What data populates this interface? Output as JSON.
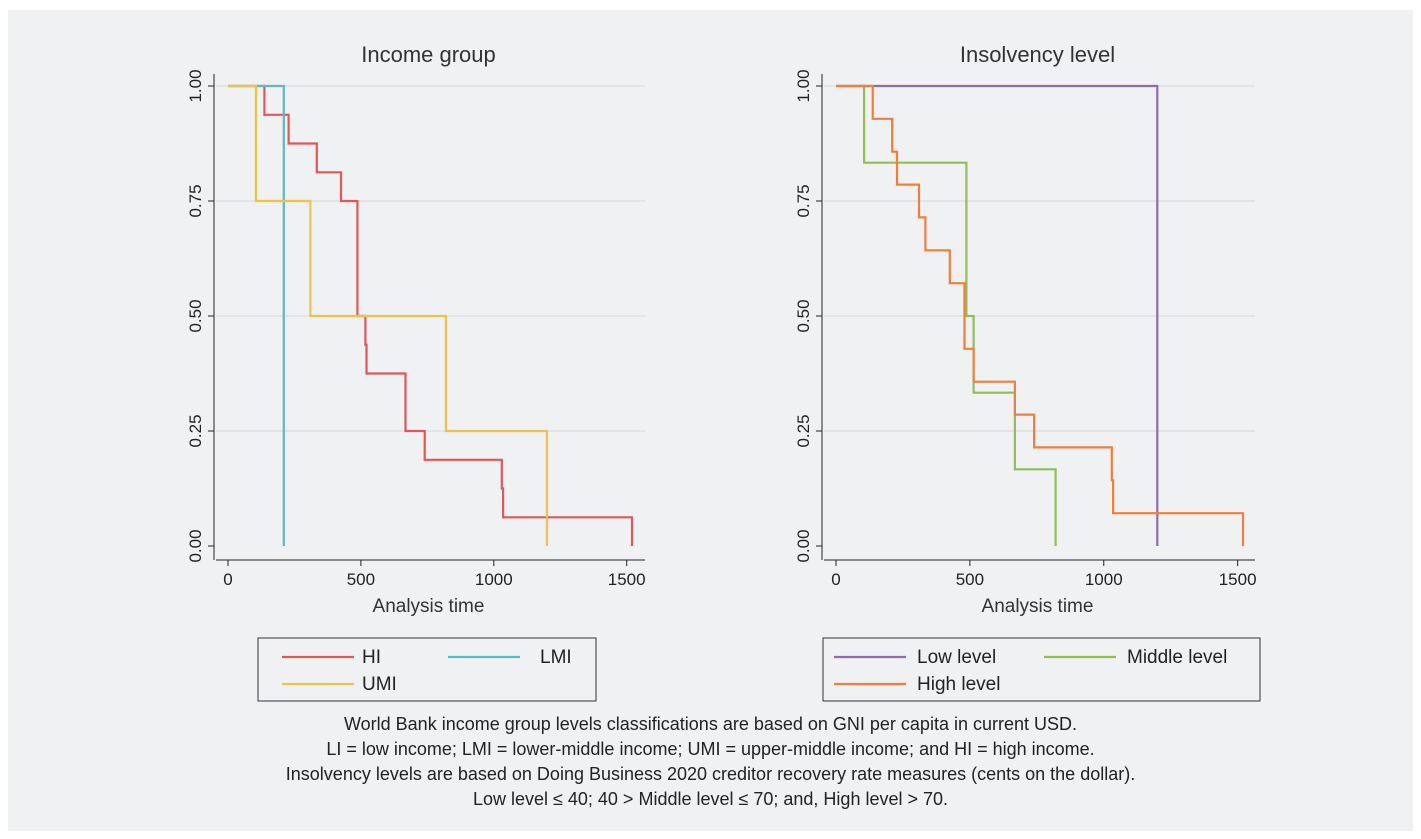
{
  "chart_data": [
    {
      "type": "line",
      "step": true,
      "title": "Income group",
      "xlabel": "Analysis time",
      "ylabel": "",
      "xlim": [
        0,
        1520
      ],
      "ylim": [
        0,
        1
      ],
      "xticks": [
        "0",
        "500",
        "1000",
        "1500"
      ],
      "xtick_values": [
        0,
        500,
        1000,
        1500
      ],
      "yticks": [
        "0.00",
        "0.25",
        "0.50",
        "0.75",
        "1.00"
      ],
      "ytick_values": [
        0,
        0.25,
        0.5,
        0.75,
        1
      ],
      "grid": true,
      "legend_position": "bottom",
      "legend_rows": [
        [
          "HI",
          "LMI"
        ],
        [
          "UMI"
        ]
      ],
      "series": [
        {
          "name": "HI",
          "color": "#e15759",
          "points": [
            [
              0,
              1
            ],
            [
              137,
              1
            ],
            [
              137,
              0.9375
            ],
            [
              228,
              0.9375
            ],
            [
              228,
              0.875
            ],
            [
              334,
              0.875
            ],
            [
              334,
              0.8125
            ],
            [
              425,
              0.8125
            ],
            [
              425,
              0.75
            ],
            [
              487,
              0.75
            ],
            [
              487,
              0.5
            ],
            [
              517,
              0.5
            ],
            [
              517,
              0.4375
            ],
            [
              521,
              0.4375
            ],
            [
              521,
              0.375
            ],
            [
              668,
              0.375
            ],
            [
              668,
              0.25
            ],
            [
              740,
              0.25
            ],
            [
              740,
              0.1875
            ],
            [
              1030,
              0.1875
            ],
            [
              1030,
              0.125
            ],
            [
              1035,
              0.125
            ],
            [
              1035,
              0.0625
            ],
            [
              1520,
              0.0625
            ],
            [
              1520,
              0
            ]
          ]
        },
        {
          "name": "LMI",
          "color": "#59b9c5",
          "points": [
            [
              0,
              1
            ],
            [
              210,
              1
            ],
            [
              210,
              0
            ]
          ]
        },
        {
          "name": "UMI",
          "color": "#f0c24b",
          "points": [
            [
              0,
              1
            ],
            [
              105,
              1
            ],
            [
              105,
              0.75
            ],
            [
              310,
              0.75
            ],
            [
              310,
              0.5
            ],
            [
              820,
              0.5
            ],
            [
              820,
              0.25
            ],
            [
              1200,
              0.25
            ],
            [
              1200,
              0
            ]
          ]
        }
      ]
    },
    {
      "type": "line",
      "step": true,
      "title": "Insolvency level",
      "xlabel": "Analysis time",
      "ylabel": "",
      "xlim": [
        0,
        1520
      ],
      "ylim": [
        0,
        1
      ],
      "xticks": [
        "0",
        "500",
        "1000",
        "1500"
      ],
      "xtick_values": [
        0,
        500,
        1000,
        1500
      ],
      "yticks": [
        "0.00",
        "0.25",
        "0.50",
        "0.75",
        "1.00"
      ],
      "ytick_values": [
        0,
        0.25,
        0.5,
        0.75,
        1
      ],
      "grid": true,
      "legend_position": "bottom",
      "legend_rows": [
        [
          "Low level",
          "Middle level"
        ],
        [
          "High level"
        ]
      ],
      "series": [
        {
          "name": "Low level",
          "color": "#8c6bb1",
          "points": [
            [
              0,
              1
            ],
            [
              1200,
              1
            ],
            [
              1200,
              0
            ]
          ]
        },
        {
          "name": "Middle level",
          "color": "#8fbf55",
          "points": [
            [
              0,
              1
            ],
            [
              105,
              1
            ],
            [
              105,
              0.8333
            ],
            [
              487,
              0.8333
            ],
            [
              487,
              0.5
            ],
            [
              514,
              0.5
            ],
            [
              514,
              0.3333
            ],
            [
              668,
              0.3333
            ],
            [
              668,
              0.1667
            ],
            [
              820,
              0.1667
            ],
            [
              820,
              0
            ]
          ]
        },
        {
          "name": "High level",
          "color": "#ef7f3a",
          "points": [
            [
              0,
              1
            ],
            [
              137,
              1
            ],
            [
              137,
              0.9286
            ],
            [
              210,
              0.9286
            ],
            [
              210,
              0.8571
            ],
            [
              228,
              0.8571
            ],
            [
              228,
              0.7857
            ],
            [
              310,
              0.7857
            ],
            [
              310,
              0.7143
            ],
            [
              334,
              0.7143
            ],
            [
              334,
              0.6429
            ],
            [
              425,
              0.6429
            ],
            [
              425,
              0.5714
            ],
            [
              480,
              0.5714
            ],
            [
              480,
              0.4286
            ],
            [
              514,
              0.4286
            ],
            [
              514,
              0.3571
            ],
            [
              668,
              0.3571
            ],
            [
              668,
              0.2857
            ],
            [
              740,
              0.2857
            ],
            [
              740,
              0.2143
            ],
            [
              1030,
              0.2143
            ],
            [
              1030,
              0.1429
            ],
            [
              1035,
              0.1429
            ],
            [
              1035,
              0.0714
            ],
            [
              1520,
              0.0714
            ],
            [
              1520,
              0
            ]
          ]
        }
      ]
    }
  ],
  "notes": [
    "World Bank income group levels classifications are based on GNI per capita in current USD.",
    "LI = low income; LMI = lower-middle income; UMI = upper-middle income; and HI = high income.",
    "Insolvency levels are based on Doing Business 2020 creditor recovery rate measures (cents on the dollar).",
    "Low level ≤ 40;  40 > Middle level ≤ 70; and, High level > 70."
  ],
  "colors": {
    "background": "#f0f1f2",
    "grid": "#d6d8db",
    "axis": "#222222"
  }
}
